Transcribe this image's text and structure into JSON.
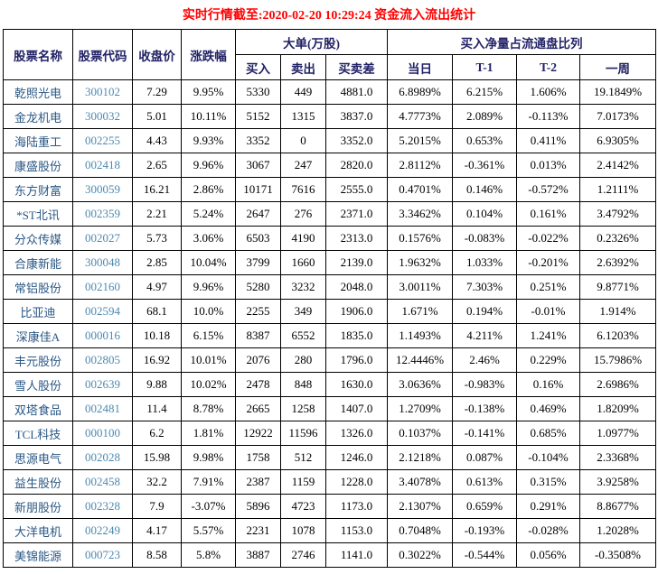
{
  "title": "实时行情截至:2020-02-20 10:29:24 资金流入流出统计",
  "colors": {
    "title": "#ff0000",
    "header_text": "#222266",
    "stock_name": "#2a5784",
    "stock_code": "#4d89b0",
    "value_text": "#000000",
    "border": "#000000"
  },
  "table": {
    "header": {
      "col_stock_name": "股票名称",
      "col_stock_code": "股票代码",
      "col_close": "收盘价",
      "col_change": "涨跌幅",
      "group_large_orders": "大单(万股)",
      "col_buy": "买入",
      "col_sell": "卖出",
      "col_diff": "买卖差",
      "group_net_buy_ratio": "买入净量占流通盘比列",
      "col_day": "当日",
      "col_t1": "T-1",
      "col_t2": "T-2",
      "col_week": "一周"
    },
    "rows": [
      {
        "name": "乾照光电",
        "code": "300102",
        "close": "7.29",
        "change": "9.95%",
        "buy": "5330",
        "sell": "449",
        "diff": "4881.0",
        "day": "6.8989%",
        "t1": "6.215%",
        "t2": "1.606%",
        "week": "19.1849%"
      },
      {
        "name": "金龙机电",
        "code": "300032",
        "close": "5.01",
        "change": "10.11%",
        "buy": "5152",
        "sell": "1315",
        "diff": "3837.0",
        "day": "4.7773%",
        "t1": "2.089%",
        "t2": "-0.113%",
        "week": "7.0173%"
      },
      {
        "name": "海陆重工",
        "code": "002255",
        "close": "4.43",
        "change": "9.93%",
        "buy": "3352",
        "sell": "0",
        "diff": "3352.0",
        "day": "5.2015%",
        "t1": "0.653%",
        "t2": "0.411%",
        "week": "6.9305%"
      },
      {
        "name": "康盛股份",
        "code": "002418",
        "close": "2.65",
        "change": "9.96%",
        "buy": "3067",
        "sell": "247",
        "diff": "2820.0",
        "day": "2.8112%",
        "t1": "-0.361%",
        "t2": "0.013%",
        "week": "2.4142%"
      },
      {
        "name": "东方财富",
        "code": "300059",
        "close": "16.21",
        "change": "2.86%",
        "buy": "10171",
        "sell": "7616",
        "diff": "2555.0",
        "day": "0.4701%",
        "t1": "0.146%",
        "t2": "-0.572%",
        "week": "1.2111%"
      },
      {
        "name": "*ST北讯",
        "code": "002359",
        "close": "2.21",
        "change": "5.24%",
        "buy": "2647",
        "sell": "276",
        "diff": "2371.0",
        "day": "3.3462%",
        "t1": "0.104%",
        "t2": "0.161%",
        "week": "3.4792%"
      },
      {
        "name": "分众传媒",
        "code": "002027",
        "close": "5.73",
        "change": "3.06%",
        "buy": "6503",
        "sell": "4190",
        "diff": "2313.0",
        "day": "0.1576%",
        "t1": "-0.083%",
        "t2": "-0.022%",
        "week": "0.2326%"
      },
      {
        "name": "合康新能",
        "code": "300048",
        "close": "2.85",
        "change": "10.04%",
        "buy": "3799",
        "sell": "1660",
        "diff": "2139.0",
        "day": "1.9632%",
        "t1": "1.033%",
        "t2": "-0.201%",
        "week": "2.6392%"
      },
      {
        "name": "常铝股份",
        "code": "002160",
        "close": "4.97",
        "change": "9.96%",
        "buy": "5280",
        "sell": "3232",
        "diff": "2048.0",
        "day": "3.0011%",
        "t1": "7.303%",
        "t2": "0.251%",
        "week": "9.8771%"
      },
      {
        "name": "比亚迪",
        "code": "002594",
        "close": "68.1",
        "change": "10.0%",
        "buy": "2255",
        "sell": "349",
        "diff": "1906.0",
        "day": "1.671%",
        "t1": "0.194%",
        "t2": "-0.01%",
        "week": "1.914%"
      },
      {
        "name": "深康佳A",
        "code": "000016",
        "close": "10.18",
        "change": "6.15%",
        "buy": "8387",
        "sell": "6552",
        "diff": "1835.0",
        "day": "1.1493%",
        "t1": "4.211%",
        "t2": "1.241%",
        "week": "6.1203%"
      },
      {
        "name": "丰元股份",
        "code": "002805",
        "close": "16.92",
        "change": "10.01%",
        "buy": "2076",
        "sell": "280",
        "diff": "1796.0",
        "day": "12.4446%",
        "t1": "2.46%",
        "t2": "0.229%",
        "week": "15.7986%"
      },
      {
        "name": "雪人股份",
        "code": "002639",
        "close": "9.88",
        "change": "10.02%",
        "buy": "2478",
        "sell": "848",
        "diff": "1630.0",
        "day": "3.0636%",
        "t1": "-0.983%",
        "t2": "0.16%",
        "week": "2.6986%"
      },
      {
        "name": "双塔食品",
        "code": "002481",
        "close": "11.4",
        "change": "8.78%",
        "buy": "2665",
        "sell": "1258",
        "diff": "1407.0",
        "day": "1.2709%",
        "t1": "-0.138%",
        "t2": "0.469%",
        "week": "1.8209%"
      },
      {
        "name": "TCL科技",
        "code": "000100",
        "close": "6.2",
        "change": "1.81%",
        "buy": "12922",
        "sell": "11596",
        "diff": "1326.0",
        "day": "0.1037%",
        "t1": "-0.141%",
        "t2": "0.685%",
        "week": "1.0977%"
      },
      {
        "name": "思源电气",
        "code": "002028",
        "close": "15.98",
        "change": "9.98%",
        "buy": "1758",
        "sell": "512",
        "diff": "1246.0",
        "day": "2.1218%",
        "t1": "0.087%",
        "t2": "-0.104%",
        "week": "2.3368%"
      },
      {
        "name": "益生股份",
        "code": "002458",
        "close": "32.2",
        "change": "7.91%",
        "buy": "2387",
        "sell": "1159",
        "diff": "1228.0",
        "day": "3.4078%",
        "t1": "0.613%",
        "t2": "0.315%",
        "week": "3.9258%"
      },
      {
        "name": "新朋股份",
        "code": "002328",
        "close": "7.9",
        "change": "-3.07%",
        "buy": "5896",
        "sell": "4723",
        "diff": "1173.0",
        "day": "2.1307%",
        "t1": "0.659%",
        "t2": "0.291%",
        "week": "8.8677%"
      },
      {
        "name": "大洋电机",
        "code": "002249",
        "close": "4.17",
        "change": "5.57%",
        "buy": "2231",
        "sell": "1078",
        "diff": "1153.0",
        "day": "0.7048%",
        "t1": "-0.193%",
        "t2": "-0.028%",
        "week": "1.2028%"
      },
      {
        "name": "美锦能源",
        "code": "000723",
        "close": "8.58",
        "change": "5.8%",
        "buy": "3887",
        "sell": "2746",
        "diff": "1141.0",
        "day": "0.3022%",
        "t1": "-0.544%",
        "t2": "0.056%",
        "week": "-0.3508%"
      }
    ]
  }
}
